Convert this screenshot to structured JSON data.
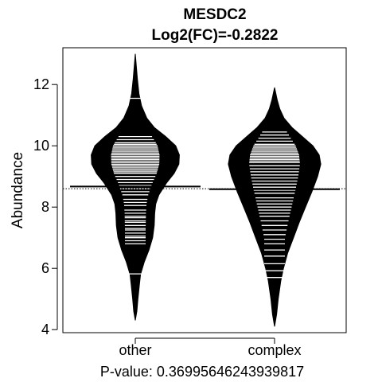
{
  "chart_data": {
    "type": "beanplot",
    "title": "MESDC2",
    "subtitle": "Log2(FC)=-0.2822",
    "ylabel": "Abundance",
    "xlabel": "",
    "footer": "P-value: 0.36995646243939817",
    "categories": [
      "other",
      "complex"
    ],
    "ylim": [
      3.9,
      13.2
    ],
    "yticks": [
      4,
      6,
      8,
      10,
      12
    ],
    "grid": false,
    "overall_line": 8.6,
    "groups": [
      {
        "name": "other",
        "mean": 8.67,
        "range": [
          4.3,
          13.0
        ],
        "density": [
          [
            4.3,
            0.0
          ],
          [
            4.6,
            0.03
          ],
          [
            5.0,
            0.05
          ],
          [
            5.5,
            0.08
          ],
          [
            5.8,
            0.1
          ],
          [
            6.2,
            0.17
          ],
          [
            6.6,
            0.26
          ],
          [
            7.0,
            0.33
          ],
          [
            7.4,
            0.36
          ],
          [
            7.8,
            0.37
          ],
          [
            8.1,
            0.39
          ],
          [
            8.4,
            0.45
          ],
          [
            8.8,
            0.6
          ],
          [
            9.1,
            0.74
          ],
          [
            9.4,
            0.83
          ],
          [
            9.7,
            0.84
          ],
          [
            10.0,
            0.77
          ],
          [
            10.3,
            0.58
          ],
          [
            10.6,
            0.36
          ],
          [
            10.9,
            0.22
          ],
          [
            11.3,
            0.12
          ],
          [
            11.7,
            0.07
          ],
          [
            12.2,
            0.04
          ],
          [
            12.6,
            0.02
          ],
          [
            13.0,
            0.0
          ]
        ],
        "observations": [
          5.82,
          6.8,
          6.9,
          7.0,
          7.05,
          7.15,
          7.25,
          7.3,
          7.4,
          7.5,
          7.55,
          7.65,
          7.7,
          7.8,
          7.9,
          8.05,
          8.15,
          8.25,
          8.4,
          8.5,
          8.6,
          8.7,
          8.8,
          8.9,
          9.0,
          9.1,
          9.15,
          9.2,
          9.25,
          9.3,
          9.35,
          9.4,
          9.45,
          9.5,
          9.55,
          9.6,
          9.65,
          9.7,
          9.75,
          9.8,
          9.85,
          9.9,
          9.95,
          10.0,
          10.05,
          10.1,
          10.2,
          10.3,
          11.55
        ]
      },
      {
        "name": "complex",
        "mean": 8.58,
        "range": [
          4.1,
          11.9
        ],
        "density": [
          [
            4.1,
            0.0
          ],
          [
            4.5,
            0.04
          ],
          [
            5.0,
            0.07
          ],
          [
            5.6,
            0.12
          ],
          [
            6.0,
            0.17
          ],
          [
            6.5,
            0.25
          ],
          [
            7.0,
            0.36
          ],
          [
            7.5,
            0.47
          ],
          [
            8.0,
            0.59
          ],
          [
            8.5,
            0.71
          ],
          [
            9.0,
            0.82
          ],
          [
            9.4,
            0.88
          ],
          [
            9.7,
            0.85
          ],
          [
            10.0,
            0.73
          ],
          [
            10.3,
            0.53
          ],
          [
            10.6,
            0.33
          ],
          [
            10.9,
            0.18
          ],
          [
            11.2,
            0.1
          ],
          [
            11.5,
            0.05
          ],
          [
            11.9,
            0.0
          ]
        ],
        "observations": [
          5.7,
          5.92,
          6.15,
          6.4,
          6.6,
          6.8,
          6.95,
          7.1,
          7.25,
          7.4,
          7.55,
          7.7,
          7.8,
          7.9,
          8.0,
          8.1,
          8.2,
          8.3,
          8.45,
          8.55,
          8.65,
          8.75,
          8.85,
          8.95,
          9.05,
          9.15,
          9.25,
          9.35,
          9.45,
          9.5,
          9.55,
          9.6,
          9.65,
          9.7,
          9.75,
          9.8,
          9.85,
          9.9,
          9.95,
          10.0,
          10.05,
          10.15,
          10.25,
          10.35,
          10.45
        ]
      }
    ]
  }
}
